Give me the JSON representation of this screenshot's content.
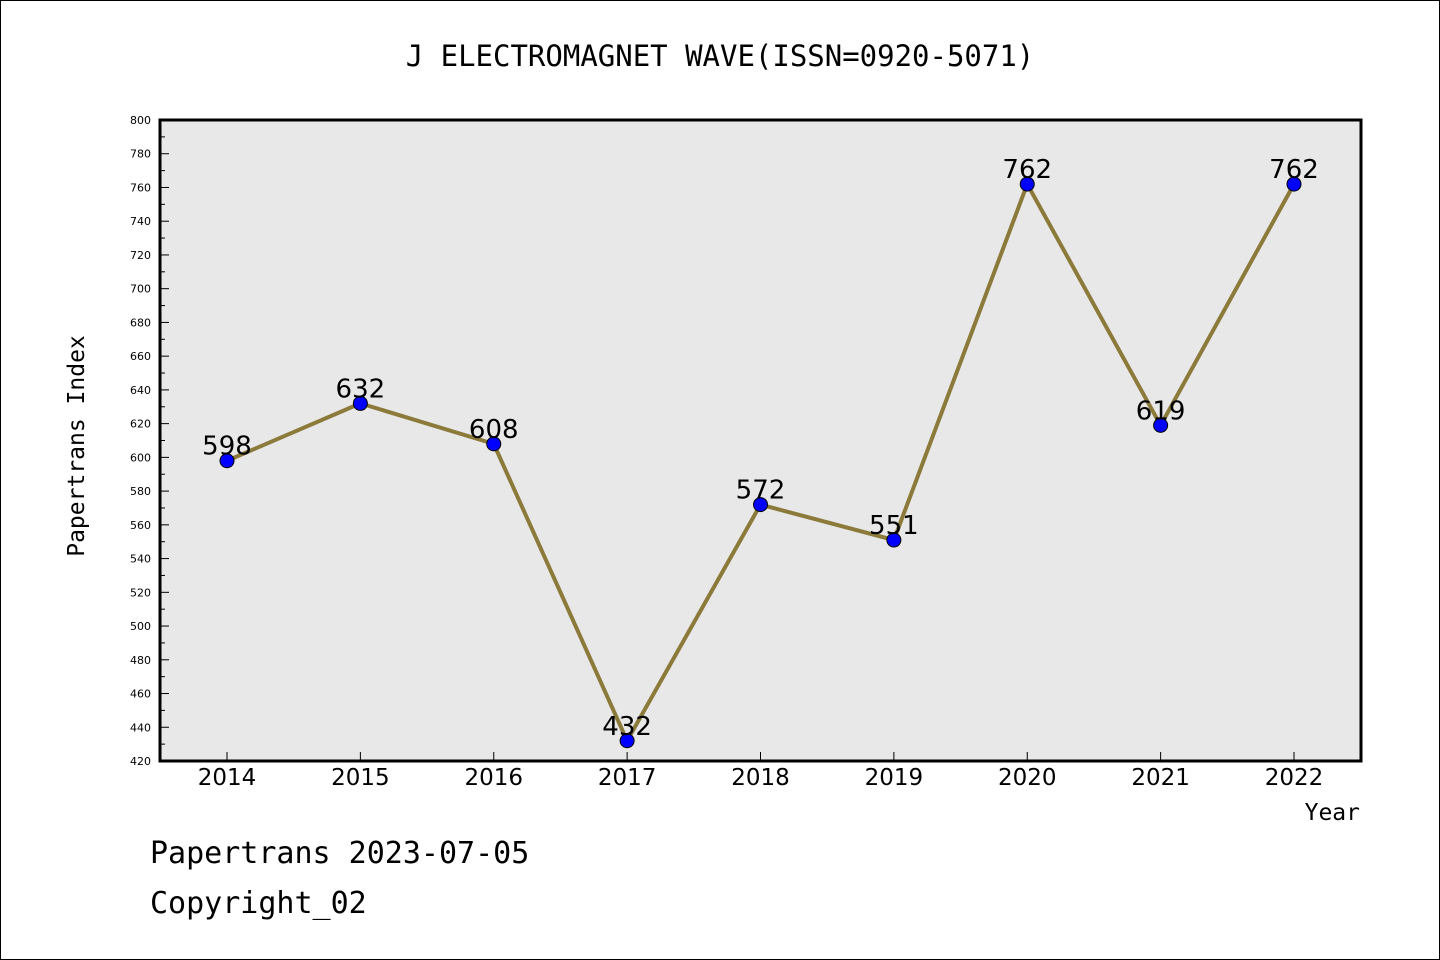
{
  "chart_data": {
    "type": "line",
    "title": "J ELECTROMAGNET WAVE(ISSN=0920-5071)",
    "xlabel": "Year",
    "ylabel": "Papertrans Index",
    "categories": [
      "2014",
      "2015",
      "2016",
      "2017",
      "2018",
      "2019",
      "2020",
      "2021",
      "2022"
    ],
    "series": [
      {
        "name": "Papertrans Index",
        "values": [
          598,
          632,
          608,
          432,
          572,
          551,
          762,
          619,
          762
        ]
      }
    ],
    "data_labels": [
      "598",
      "632",
      "608",
      "432",
      "572",
      "551",
      "762",
      "619",
      "762"
    ],
    "ylim": [
      420,
      800
    ],
    "y_ticks": [
      "420",
      "440",
      "460",
      "480",
      "500",
      "520",
      "540",
      "560",
      "580",
      "600",
      "620",
      "640",
      "660",
      "680",
      "700",
      "720",
      "740",
      "760",
      "780",
      "800"
    ],
    "grid": false,
    "colors": {
      "line": "#8B7A3A",
      "marker": "#0000FF",
      "plot_background": "#E8E8E8"
    }
  },
  "footer": {
    "source": "Papertrans 2023-07-05",
    "copyright": "Copyright_02"
  }
}
